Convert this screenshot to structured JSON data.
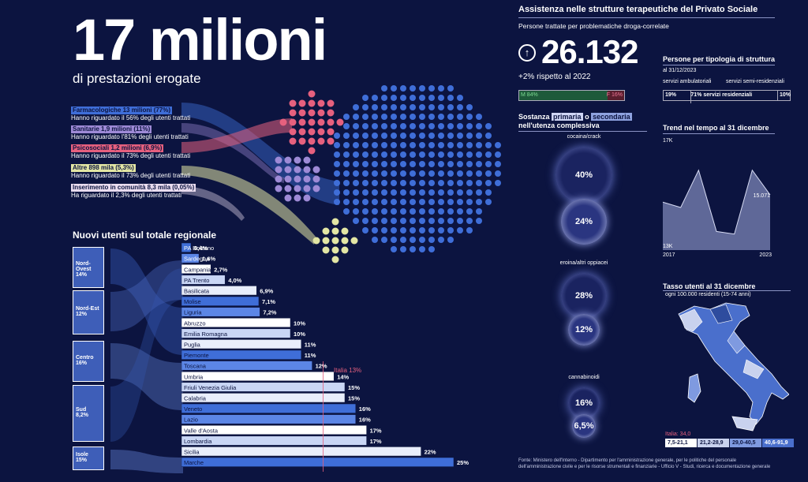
{
  "hero": {
    "number": "17 milioni",
    "subtitle": "di prestazioni erogate"
  },
  "categories": [
    {
      "title": "Farmacologiche 13 milioni (77%)",
      "sub": "Hanno riguardato il 56% degli utenti trattati",
      "color": "#3f6ed8"
    },
    {
      "title": "Sanitarie 1,9 milioni (11%)",
      "sub": "Hanno riguardato l'81% degli utenti trattati",
      "color": "#9e8ad6"
    },
    {
      "title": "Psicosociali 1,2 milioni (6,9%)",
      "sub": "Hanno riguardato il 73% degli utenti trattati",
      "color": "#e6607e"
    },
    {
      "title": "Altre 898 mila (5,3%)",
      "sub": "Hanno riguardato il 73% degli utenti trattati",
      "color": "#e3e6a4"
    },
    {
      "title": "Inserimento in comunità 8,3 mila (0,05%)",
      "sub": "Ha riguardato il 2,3% degli utenti trattati",
      "color": "#e9dcef"
    }
  ],
  "regional": {
    "title": "Nuovi utenti sul totale regionale",
    "italia_label": "Italia 13%",
    "macro": [
      {
        "name": "Nord-Ovest",
        "pct": "14%"
      },
      {
        "name": "Nord-Est",
        "pct": "12%"
      },
      {
        "name": "Centro",
        "pct": "16%"
      },
      {
        "name": "Sud",
        "pct": "8,2%"
      },
      {
        "name": "Isole",
        "pct": "15%"
      }
    ]
  },
  "chart_data": [
    {
      "type": "bar",
      "title": "Nuovi utenti sul totale regionale",
      "categories": [
        "PA Bolzano",
        "Sardegna",
        "Campania",
        "PA Trento",
        "Basilicata",
        "Molise",
        "Liguria",
        "Abruzzo",
        "Emilia Romagna",
        "Puglia",
        "Piemonte",
        "Toscana",
        "Umbria",
        "Friuli Venezia Giulia",
        "Calabria",
        "Veneto",
        "Lazio",
        "Valle d'Aosta",
        "Lombardia",
        "Sicilia",
        "Marche"
      ],
      "values": [
        0.4,
        1.6,
        2.7,
        4.0,
        6.9,
        7.1,
        7.2,
        10,
        10,
        11,
        11,
        12,
        14,
        15,
        15,
        16,
        16,
        17,
        17,
        22,
        25
      ],
      "labels": [
        "0,4%",
        "1,6%",
        "2,7%",
        "4,0%",
        "6,9%",
        "7,1%",
        "7,2%",
        "10%",
        "10%",
        "11%",
        "11%",
        "12%",
        "14%",
        "15%",
        "15%",
        "16%",
        "16%",
        "17%",
        "17%",
        "22%",
        "25%"
      ]
    },
    {
      "type": "line",
      "title": "Trend nel tempo al 31 dicembre",
      "x": [
        2017,
        2018,
        2019,
        2020,
        2021,
        2022,
        2023
      ],
      "y": [
        14800,
        14600,
        16000,
        13700,
        13600,
        16000,
        15071
      ],
      "ylim": [
        13000,
        17000
      ],
      "y_top_label": "17K",
      "y_bottom_label": "13K",
      "x_start_label": "2017",
      "x_end_label": "2023",
      "end_value_label": "15.071"
    }
  ],
  "assistenza": {
    "title": "Assistenza nelle strutture terapeutiche del Privato Sociale",
    "subtitle": "Persone trattate per problematiche droga-correlate",
    "big_number": "26.132",
    "change": "+2% rispetto al 2022",
    "male": "M 84%",
    "female": "F 16%"
  },
  "sostanza": {
    "title_a": "Sostanza",
    "title_primaria": "primaria",
    "title_o": "o",
    "title_secondaria": "secondaria",
    "title_b": "nell'utenza complessiva",
    "items": [
      {
        "name": "cocaina/crack",
        "primary": "40%",
        "secondary": "24%"
      },
      {
        "name": "eroina/altri oppiacei",
        "primary": "28%",
        "secondary": "12%"
      },
      {
        "name": "cannabinoidi",
        "primary": "16%",
        "secondary": "6,5%"
      }
    ]
  },
  "tipologia": {
    "title": "Persone per tipologia di struttura",
    "date": "al 31/12/2023",
    "label_amb": "servizi ambulatoriali",
    "label_semi": "servizi semi-residenziali",
    "amb": "19%",
    "res": "71% servizi residenziali",
    "semi": "10%"
  },
  "trend": {
    "title": "Trend nel tempo al 31 dicembre"
  },
  "tasso": {
    "title": "Tasso utenti al 31 dicembre",
    "subtitle": "ogni 100.000 residenti (15-74 anni)",
    "italia": "Italia: 34,0",
    "legend": [
      "7,5-21,1",
      "21,2-28,9",
      "29,0-40,5",
      "40,6-91,9"
    ]
  },
  "source": "Fonte: Ministero dell'Interno - Dipartimento per l'amministrazione generale, per le politiche del personale dell'amministrazione civile e per le risorse strumentali e finanziarie - Ufficio V - Studi, ricerca e documentazione generale"
}
